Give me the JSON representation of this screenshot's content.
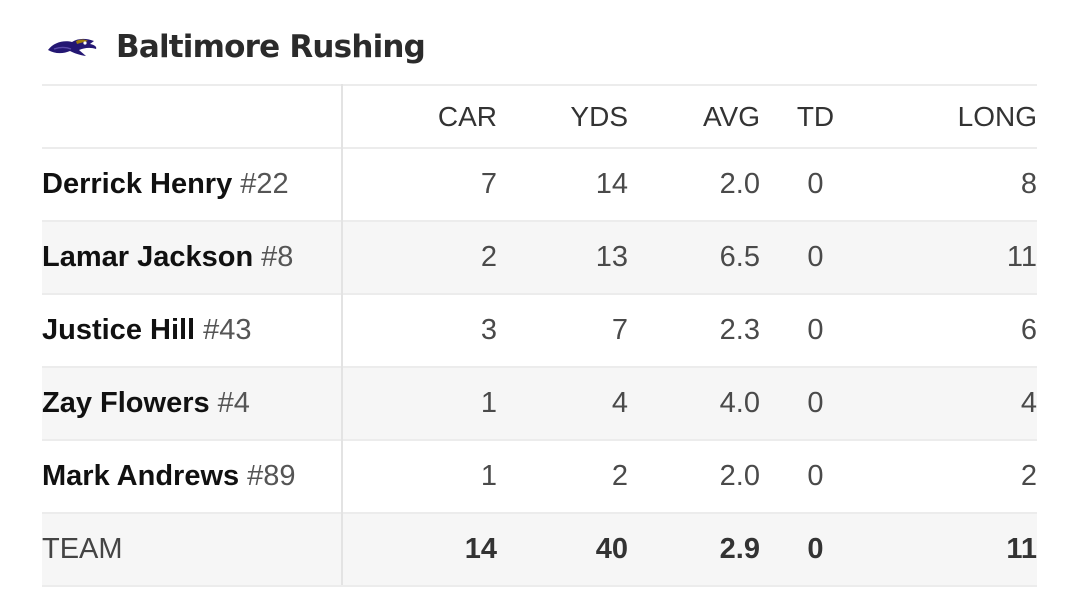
{
  "header": {
    "title": "Baltimore Rushing",
    "logo_icon": "ravens-logo-icon"
  },
  "columns": [
    "CAR",
    "YDS",
    "AVG",
    "TD",
    "LONG"
  ],
  "players": [
    {
      "name": "Derrick Henry",
      "number": "#22",
      "car": "7",
      "yds": "14",
      "avg": "2.0",
      "td": "0",
      "long": "8"
    },
    {
      "name": "Lamar Jackson",
      "number": "#8",
      "car": "2",
      "yds": "13",
      "avg": "6.5",
      "td": "0",
      "long": "11"
    },
    {
      "name": "Justice Hill",
      "number": "#43",
      "car": "3",
      "yds": "7",
      "avg": "2.3",
      "td": "0",
      "long": "6"
    },
    {
      "name": "Zay Flowers",
      "number": "#4",
      "car": "1",
      "yds": "4",
      "avg": "4.0",
      "td": "0",
      "long": "4"
    },
    {
      "name": "Mark Andrews",
      "number": "#89",
      "car": "1",
      "yds": "2",
      "avg": "2.0",
      "td": "0",
      "long": "2"
    }
  ],
  "team": {
    "label": "TEAM",
    "car": "14",
    "yds": "40",
    "avg": "2.9",
    "td": "0",
    "long": "11"
  },
  "colors": {
    "logo_purple": "#241773",
    "logo_gold": "#9e7c0c",
    "text": "#1a1a1a",
    "row_alt": "#f6f6f6",
    "divider": "#ececec"
  }
}
